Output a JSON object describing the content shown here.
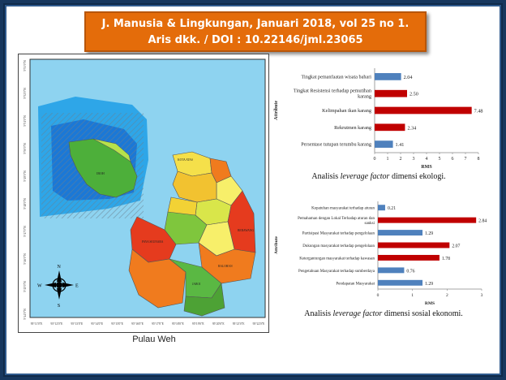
{
  "header": {
    "line1": "J. Manusia & Lingkungan, Januari 2018, vol 25 no 1.",
    "line2": "Aris dkk. / DOI : 10.22146/jml.23065"
  },
  "map": {
    "caption": "Pulau Weh",
    "compass": {
      "n": "N",
      "s": "S",
      "e": "E",
      "w": "W"
    },
    "lat_labels": [
      "5°53'0\"N",
      "5°52'0\"N",
      "5°51'0\"N",
      "5°50'0\"N",
      "5°49'0\"N",
      "5°48'0\"N",
      "5°47'0\"N",
      "5°46'0\"N",
      "5°45'0\"N",
      "5°44'0\"N"
    ],
    "lon_labels": [
      "95°11'0\"E",
      "95°12'0\"E",
      "95°13'0\"E",
      "95°14'0\"E",
      "95°15'0\"E",
      "95°16'0\"E",
      "95°17'0\"E",
      "95°18'0\"E",
      "95°19'0\"E",
      "95°20'0\"E",
      "95°21'0\"E",
      "95°22'0\"E"
    ],
    "regions": [
      {
        "name": "IBOH",
        "color": "#4daf3a"
      },
      {
        "name": "KOTA ATAS",
        "color": "#f5e04a"
      },
      {
        "name": "KOTA BAWAH BARAT",
        "color": "#f2c230"
      },
      {
        "name": "KOTA BAWAH TIMUR",
        "color": "#e8a028"
      },
      {
        "name": "IE MEULEE",
        "color": "#f07b1e"
      },
      {
        "name": "KRUENG RAYA",
        "color": "#f2d235"
      },
      {
        "name": "AIH BADEK",
        "color": "#f5e04a"
      },
      {
        "name": "JURONG",
        "color": "#c6e03a"
      },
      {
        "name": "ANOI ITAM",
        "color": "#d9e64a"
      },
      {
        "name": "UJONG KAREUNG",
        "color": "#f7ef6a"
      },
      {
        "name": "IE SEUMIRA",
        "color": "#7fc63d"
      },
      {
        "name": "PAYA SEUNARA",
        "color": "#e53b1e"
      },
      {
        "name": "BATEE SHOK",
        "color": "#f7ef6a"
      },
      {
        "name": "BALOHAN",
        "color": "#f07b1e"
      },
      {
        "name": "IBOIH",
        "color": "#f07b1e"
      },
      {
        "name": "JABOI",
        "color": "#5ab843"
      },
      {
        "name": "KEUNEUKAI",
        "color": "#5ab843"
      },
      {
        "name": "BERAWANG",
        "color": "#e53b1e"
      }
    ]
  },
  "chart_ecology": {
    "caption_pre": "Analisis ",
    "caption_em": "leverage factor",
    "caption_post": " dimensi ekologi.",
    "chart_data": {
      "type": "bar",
      "orientation": "horizontal",
      "categories": [
        "Tingkat pemanfaatan wisata bahari",
        "Tingkat Resistensi terhadap pemutihan karang",
        "Kelimpahan ikan karang",
        "Rekrutmen karang",
        "Persentase tutupan terumbu karang"
      ],
      "values": [
        2.04,
        2.5,
        7.48,
        2.34,
        1.41
      ],
      "value_labels": [
        "2.04",
        "2.50",
        "7.48",
        "2.34",
        "1.41"
      ],
      "colors": [
        "#4f81bd",
        "#c00000",
        "#c00000",
        "#c00000",
        "#4f81bd"
      ],
      "xlabel": "RMS",
      "ylabel": "Attribute",
      "xlim": [
        0,
        8
      ],
      "xticks": [
        "0",
        "1",
        "2",
        "3",
        "4",
        "5",
        "6",
        "7",
        "8"
      ]
    }
  },
  "chart_social": {
    "caption_pre": "Analisis ",
    "caption_em": "leverage factor",
    "caption_post": " dimensi sosial ekonomi.",
    "chart_data": {
      "type": "bar",
      "orientation": "horizontal",
      "categories": [
        "Kepatuhan masyarakat terhadap aturan",
        "Pemahaman dengan Lokal Terhadap aturan dan sanksi",
        "Partisipasi Masyarakat terhadap pengelolaan",
        "Dukungan masyarakat terhadap pengelolaan",
        "Ketergantungan masyarakat terhadap kawasan",
        "Pengetahuan Masyarakat terhadap sumberdaya",
        "Pendapatan Masyarakat"
      ],
      "values": [
        0.21,
        2.84,
        1.29,
        2.07,
        1.78,
        0.76,
        1.29
      ],
      "value_labels": [
        "0.21",
        "2.84",
        "1.29",
        "2.07",
        "1.78",
        "0.76",
        "1.29"
      ],
      "colors": [
        "#4f81bd",
        "#c00000",
        "#4f81bd",
        "#c00000",
        "#c00000",
        "#4f81bd",
        "#4f81bd"
      ],
      "xlabel": "RMS",
      "ylabel": "Attribute",
      "xlim": [
        0,
        3
      ],
      "xticks": [
        "0",
        "1",
        "2",
        "3"
      ]
    }
  }
}
